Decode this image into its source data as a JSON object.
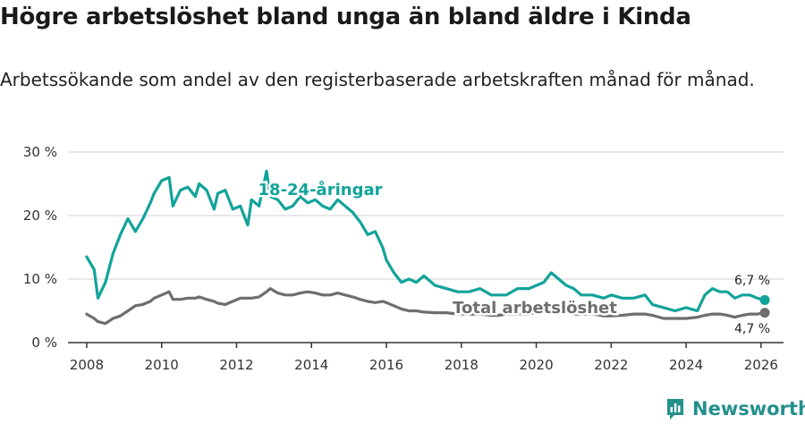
{
  "header": {
    "title": "Högre arbetslöshet bland unga än bland äldre i Kinda",
    "subtitle": "Arbetssökande som andel av den registerbaserade arbetskraften månad för månad."
  },
  "brand": {
    "name": "Newsworthy",
    "icon": "newsworthy-logo-icon"
  },
  "colors": {
    "youth": "#12a39a",
    "total": "#6e6e6e",
    "grid": "#e0e0e0",
    "axis": "#333333"
  },
  "chart_data": {
    "type": "line",
    "title": "Högre arbetslöshet bland unga än bland äldre i Kinda",
    "xlabel": "",
    "ylabel": "",
    "xlim": [
      2007.5,
      2026.6
    ],
    "ylim": [
      0,
      30
    ],
    "x_ticks": [
      2008,
      2010,
      2012,
      2014,
      2016,
      2018,
      2020,
      2022,
      2024,
      2026
    ],
    "x_tick_labels": [
      "2008",
      "2010",
      "2012",
      "2014",
      "2016",
      "2018",
      "2020",
      "2022",
      "2024",
      "2026"
    ],
    "y_ticks": [
      0,
      10,
      20,
      30
    ],
    "y_tick_labels": [
      "0 %",
      "10 %",
      "20 %",
      "30 %"
    ],
    "grid": true,
    "legend": "inline labels",
    "series": [
      {
        "name": "18-24-åringar",
        "label": "18-24-åringar",
        "end_label": "6,7 %",
        "x": [
          2008.0,
          2008.2,
          2008.3,
          2008.5,
          2008.7,
          2008.9,
          2009.1,
          2009.3,
          2009.5,
          2009.7,
          2009.8,
          2010.0,
          2010.2,
          2010.3,
          2010.5,
          2010.7,
          2010.9,
          2011.0,
          2011.2,
          2011.4,
          2011.5,
          2011.7,
          2011.9,
          2012.1,
          2012.3,
          2012.4,
          2012.6,
          2012.8,
          2012.9,
          2013.1,
          2013.3,
          2013.5,
          2013.7,
          2013.9,
          2014.1,
          2014.3,
          2014.5,
          2014.7,
          2014.9,
          2015.1,
          2015.3,
          2015.5,
          2015.7,
          2015.9,
          2016.0,
          2016.2,
          2016.4,
          2016.6,
          2016.8,
          2017.0,
          2017.3,
          2017.6,
          2017.9,
          2018.2,
          2018.5,
          2018.8,
          2019.0,
          2019.2,
          2019.5,
          2019.8,
          2020.0,
          2020.2,
          2020.4,
          2020.6,
          2020.8,
          2021.0,
          2021.2,
          2021.5,
          2021.8,
          2022.0,
          2022.3,
          2022.6,
          2022.9,
          2023.1,
          2023.4,
          2023.7,
          2024.0,
          2024.3,
          2024.5,
          2024.7,
          2024.9,
          2025.1,
          2025.3,
          2025.5,
          2025.7,
          2025.9,
          2026.1
        ],
        "y": [
          13.5,
          11.5,
          7.0,
          9.5,
          14.0,
          17.0,
          19.5,
          17.5,
          19.5,
          22.0,
          23.5,
          25.5,
          26.0,
          21.5,
          24.0,
          24.5,
          23.0,
          25.0,
          24.0,
          21.0,
          23.5,
          24.0,
          21.0,
          21.5,
          18.5,
          22.5,
          21.5,
          27.0,
          23.0,
          22.5,
          21.0,
          21.5,
          23.0,
          22.0,
          22.5,
          21.5,
          21.0,
          22.5,
          21.5,
          20.5,
          19.0,
          17.0,
          17.5,
          15.0,
          13.0,
          11.0,
          9.5,
          10.0,
          9.5,
          10.5,
          9.0,
          8.5,
          8.0,
          8.0,
          8.5,
          7.5,
          7.5,
          7.5,
          8.5,
          8.5,
          9.0,
          9.5,
          11.0,
          10.0,
          9.0,
          8.5,
          7.5,
          7.5,
          7.0,
          7.5,
          7.0,
          7.0,
          7.5,
          6.0,
          5.5,
          5.0,
          5.5,
          5.0,
          7.5,
          8.5,
          8.0,
          8.0,
          7.0,
          7.5,
          7.5,
          7.0,
          6.7
        ]
      },
      {
        "name": "Total arbetslöshet",
        "label": "Total arbetslöshet",
        "end_label": "4,7 %",
        "x": [
          2008.0,
          2008.2,
          2008.3,
          2008.5,
          2008.7,
          2008.9,
          2009.1,
          2009.3,
          2009.5,
          2009.7,
          2009.8,
          2010.0,
          2010.2,
          2010.3,
          2010.5,
          2010.7,
          2010.9,
          2011.0,
          2011.2,
          2011.4,
          2011.5,
          2011.7,
          2011.9,
          2012.1,
          2012.3,
          2012.4,
          2012.6,
          2012.8,
          2012.9,
          2013.1,
          2013.3,
          2013.5,
          2013.7,
          2013.9,
          2014.1,
          2014.3,
          2014.5,
          2014.7,
          2014.9,
          2015.1,
          2015.3,
          2015.5,
          2015.7,
          2015.9,
          2016.0,
          2016.2,
          2016.4,
          2016.6,
          2016.8,
          2017.0,
          2017.3,
          2017.6,
          2017.9,
          2018.2,
          2018.5,
          2018.8,
          2019.0,
          2019.2,
          2019.5,
          2019.8,
          2020.0,
          2020.2,
          2020.4,
          2020.6,
          2020.8,
          2021.0,
          2021.2,
          2021.5,
          2021.8,
          2022.0,
          2022.3,
          2022.6,
          2022.9,
          2023.1,
          2023.4,
          2023.7,
          2024.0,
          2024.3,
          2024.5,
          2024.7,
          2024.9,
          2025.1,
          2025.3,
          2025.5,
          2025.7,
          2025.9,
          2026.1
        ],
        "y": [
          4.5,
          3.8,
          3.3,
          3.0,
          3.8,
          4.2,
          5.0,
          5.8,
          6.0,
          6.5,
          7.0,
          7.5,
          8.0,
          6.8,
          6.8,
          7.0,
          7.0,
          7.2,
          6.8,
          6.5,
          6.2,
          6.0,
          6.5,
          7.0,
          7.0,
          7.0,
          7.2,
          8.0,
          8.5,
          7.8,
          7.5,
          7.5,
          7.8,
          8.0,
          7.8,
          7.5,
          7.5,
          7.8,
          7.5,
          7.2,
          6.8,
          6.5,
          6.3,
          6.5,
          6.3,
          5.8,
          5.3,
          5.0,
          5.0,
          4.8,
          4.7,
          4.7,
          4.5,
          4.5,
          4.5,
          4.3,
          4.3,
          4.5,
          4.5,
          4.5,
          4.8,
          5.0,
          5.0,
          4.8,
          4.8,
          4.5,
          4.5,
          4.5,
          4.2,
          4.2,
          4.3,
          4.5,
          4.5,
          4.3,
          3.8,
          3.8,
          3.8,
          4.0,
          4.3,
          4.5,
          4.5,
          4.3,
          4.0,
          4.3,
          4.5,
          4.5,
          4.7
        ]
      }
    ]
  }
}
